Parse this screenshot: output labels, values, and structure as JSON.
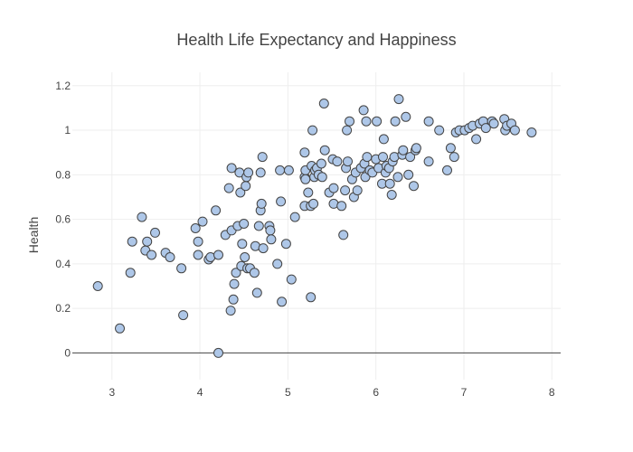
{
  "chart_data": {
    "type": "scatter",
    "title": "Health Life Expectancy and Happiness",
    "xlabel": "",
    "ylabel": "Health",
    "xlim": [
      2.55,
      8.1
    ],
    "ylim": [
      -0.12,
      1.26
    ],
    "xticks": [
      3,
      4,
      5,
      6,
      7,
      8
    ],
    "yticks": [
      0,
      0.2,
      0.4,
      0.6,
      0.8,
      1,
      1.2
    ],
    "grid": true,
    "marker_color": "#aec7e8",
    "marker_edge_color": "#444444",
    "points": [
      [
        2.84,
        0.3
      ],
      [
        3.09,
        0.11
      ],
      [
        3.21,
        0.36
      ],
      [
        3.23,
        0.5
      ],
      [
        3.34,
        0.61
      ],
      [
        3.38,
        0.46
      ],
      [
        3.4,
        0.5
      ],
      [
        3.45,
        0.44
      ],
      [
        3.49,
        0.54
      ],
      [
        3.61,
        0.45
      ],
      [
        3.66,
        0.43
      ],
      [
        3.79,
        0.38
      ],
      [
        3.81,
        0.17
      ],
      [
        3.95,
        0.56
      ],
      [
        3.98,
        0.44
      ],
      [
        3.98,
        0.5
      ],
      [
        4.03,
        0.59
      ],
      [
        4.1,
        0.42
      ],
      [
        4.12,
        0.43
      ],
      [
        4.18,
        0.64
      ],
      [
        4.21,
        0.44
      ],
      [
        4.21,
        0.0
      ],
      [
        4.29,
        0.53
      ],
      [
        4.33,
        0.74
      ],
      [
        4.35,
        0.19
      ],
      [
        4.36,
        0.55
      ],
      [
        4.36,
        0.83
      ],
      [
        4.38,
        0.24
      ],
      [
        4.39,
        0.31
      ],
      [
        4.41,
        0.36
      ],
      [
        4.43,
        0.57
      ],
      [
        4.45,
        0.81
      ],
      [
        4.46,
        0.72
      ],
      [
        4.47,
        0.39
      ],
      [
        4.48,
        0.49
      ],
      [
        4.5,
        0.58
      ],
      [
        4.51,
        0.43
      ],
      [
        4.52,
        0.75
      ],
      [
        4.53,
        0.79
      ],
      [
        4.54,
        0.38
      ],
      [
        4.55,
        0.81
      ],
      [
        4.57,
        0.38
      ],
      [
        4.62,
        0.36
      ],
      [
        4.63,
        0.48
      ],
      [
        4.65,
        0.27
      ],
      [
        4.67,
        0.57
      ],
      [
        4.69,
        0.81
      ],
      [
        4.69,
        0.64
      ],
      [
        4.7,
        0.67
      ],
      [
        4.71,
        0.88
      ],
      [
        4.72,
        0.47
      ],
      [
        4.79,
        0.57
      ],
      [
        4.8,
        0.55
      ],
      [
        4.81,
        0.51
      ],
      [
        4.88,
        0.4
      ],
      [
        4.91,
        0.82
      ],
      [
        4.92,
        0.68
      ],
      [
        4.93,
        0.23
      ],
      [
        4.98,
        0.49
      ],
      [
        5.01,
        0.82
      ],
      [
        5.04,
        0.33
      ],
      [
        5.08,
        0.61
      ],
      [
        5.19,
        0.66
      ],
      [
        5.19,
        0.9
      ],
      [
        5.19,
        0.79
      ],
      [
        5.2,
        0.82
      ],
      [
        5.2,
        0.78
      ],
      [
        5.23,
        0.72
      ],
      [
        5.26,
        0.66
      ],
      [
        5.26,
        0.25
      ],
      [
        5.27,
        0.84
      ],
      [
        5.28,
        1.0
      ],
      [
        5.29,
        0.67
      ],
      [
        5.3,
        0.79
      ],
      [
        5.31,
        0.82
      ],
      [
        5.33,
        0.83
      ],
      [
        5.35,
        0.8
      ],
      [
        5.38,
        0.85
      ],
      [
        5.39,
        0.79
      ],
      [
        5.41,
        1.12
      ],
      [
        5.42,
        0.91
      ],
      [
        5.47,
        0.72
      ],
      [
        5.51,
        0.87
      ],
      [
        5.52,
        0.74
      ],
      [
        5.52,
        0.67
      ],
      [
        5.56,
        0.86
      ],
      [
        5.61,
        0.66
      ],
      [
        5.63,
        0.53
      ],
      [
        5.65,
        0.73
      ],
      [
        5.66,
        0.83
      ],
      [
        5.67,
        1.0
      ],
      [
        5.68,
        0.86
      ],
      [
        5.7,
        1.04
      ],
      [
        5.73,
        0.78
      ],
      [
        5.75,
        0.7
      ],
      [
        5.77,
        0.81
      ],
      [
        5.79,
        0.73
      ],
      [
        5.83,
        0.83
      ],
      [
        5.86,
        1.09
      ],
      [
        5.87,
        0.85
      ],
      [
        5.88,
        0.79
      ],
      [
        5.89,
        1.04
      ],
      [
        5.9,
        0.88
      ],
      [
        5.93,
        0.82
      ],
      [
        5.96,
        0.81
      ],
      [
        6.0,
        0.87
      ],
      [
        6.01,
        1.04
      ],
      [
        6.03,
        0.83
      ],
      [
        6.07,
        0.76
      ],
      [
        6.08,
        0.88
      ],
      [
        6.09,
        0.96
      ],
      [
        6.11,
        0.81
      ],
      [
        6.12,
        0.84
      ],
      [
        6.15,
        0.83
      ],
      [
        6.16,
        0.76
      ],
      [
        6.18,
        0.71
      ],
      [
        6.19,
        0.86
      ],
      [
        6.21,
        0.88
      ],
      [
        6.22,
        1.04
      ],
      [
        6.25,
        0.79
      ],
      [
        6.26,
        1.14
      ],
      [
        6.3,
        0.89
      ],
      [
        6.31,
        0.91
      ],
      [
        6.34,
        1.06
      ],
      [
        6.37,
        0.8
      ],
      [
        6.39,
        0.88
      ],
      [
        6.43,
        0.75
      ],
      [
        6.45,
        0.91
      ],
      [
        6.46,
        0.92
      ],
      [
        6.6,
        0.86
      ],
      [
        6.6,
        1.04
      ],
      [
        6.72,
        1.0
      ],
      [
        6.81,
        0.82
      ],
      [
        6.85,
        0.92
      ],
      [
        6.89,
        0.88
      ],
      [
        6.91,
        0.99
      ],
      [
        6.95,
        1.0
      ],
      [
        7.01,
        1.0
      ],
      [
        7.06,
        1.01
      ],
      [
        7.1,
        1.02
      ],
      [
        7.14,
        0.96
      ],
      [
        7.18,
        1.03
      ],
      [
        7.22,
        1.04
      ],
      [
        7.25,
        1.01
      ],
      [
        7.32,
        1.04
      ],
      [
        7.34,
        1.03
      ],
      [
        7.46,
        1.05
      ],
      [
        7.47,
        1.0
      ],
      [
        7.49,
        1.02
      ],
      [
        7.54,
        1.03
      ],
      [
        7.58,
        1.0
      ],
      [
        7.77,
        0.99
      ]
    ]
  }
}
